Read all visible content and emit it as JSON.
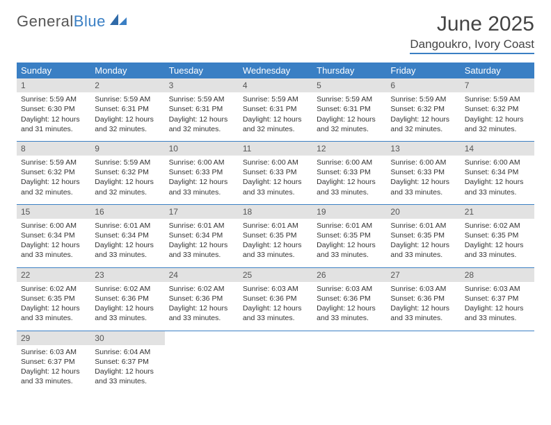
{
  "logo": {
    "text1": "General",
    "text2": "Blue"
  },
  "title": "June 2025",
  "location": "Dangoukro, Ivory Coast",
  "colors": {
    "header_bg": "#3a7fc4",
    "header_text": "#ffffff",
    "daynum_bg": "#e2e2e2",
    "rule": "#3a7fc4"
  },
  "day_names": [
    "Sunday",
    "Monday",
    "Tuesday",
    "Wednesday",
    "Thursday",
    "Friday",
    "Saturday"
  ],
  "label_sunrise": "Sunrise: ",
  "label_sunset": "Sunset: ",
  "label_daylight": "Daylight: ",
  "weeks": [
    [
      {
        "n": "1",
        "sunrise": "5:59 AM",
        "sunset": "6:30 PM",
        "daylight": "12 hours and 31 minutes."
      },
      {
        "n": "2",
        "sunrise": "5:59 AM",
        "sunset": "6:31 PM",
        "daylight": "12 hours and 32 minutes."
      },
      {
        "n": "3",
        "sunrise": "5:59 AM",
        "sunset": "6:31 PM",
        "daylight": "12 hours and 32 minutes."
      },
      {
        "n": "4",
        "sunrise": "5:59 AM",
        "sunset": "6:31 PM",
        "daylight": "12 hours and 32 minutes."
      },
      {
        "n": "5",
        "sunrise": "5:59 AM",
        "sunset": "6:31 PM",
        "daylight": "12 hours and 32 minutes."
      },
      {
        "n": "6",
        "sunrise": "5:59 AM",
        "sunset": "6:32 PM",
        "daylight": "12 hours and 32 minutes."
      },
      {
        "n": "7",
        "sunrise": "5:59 AM",
        "sunset": "6:32 PM",
        "daylight": "12 hours and 32 minutes."
      }
    ],
    [
      {
        "n": "8",
        "sunrise": "5:59 AM",
        "sunset": "6:32 PM",
        "daylight": "12 hours and 32 minutes."
      },
      {
        "n": "9",
        "sunrise": "5:59 AM",
        "sunset": "6:32 PM",
        "daylight": "12 hours and 32 minutes."
      },
      {
        "n": "10",
        "sunrise": "6:00 AM",
        "sunset": "6:33 PM",
        "daylight": "12 hours and 33 minutes."
      },
      {
        "n": "11",
        "sunrise": "6:00 AM",
        "sunset": "6:33 PM",
        "daylight": "12 hours and 33 minutes."
      },
      {
        "n": "12",
        "sunrise": "6:00 AM",
        "sunset": "6:33 PM",
        "daylight": "12 hours and 33 minutes."
      },
      {
        "n": "13",
        "sunrise": "6:00 AM",
        "sunset": "6:33 PM",
        "daylight": "12 hours and 33 minutes."
      },
      {
        "n": "14",
        "sunrise": "6:00 AM",
        "sunset": "6:34 PM",
        "daylight": "12 hours and 33 minutes."
      }
    ],
    [
      {
        "n": "15",
        "sunrise": "6:00 AM",
        "sunset": "6:34 PM",
        "daylight": "12 hours and 33 minutes."
      },
      {
        "n": "16",
        "sunrise": "6:01 AM",
        "sunset": "6:34 PM",
        "daylight": "12 hours and 33 minutes."
      },
      {
        "n": "17",
        "sunrise": "6:01 AM",
        "sunset": "6:34 PM",
        "daylight": "12 hours and 33 minutes."
      },
      {
        "n": "18",
        "sunrise": "6:01 AM",
        "sunset": "6:35 PM",
        "daylight": "12 hours and 33 minutes."
      },
      {
        "n": "19",
        "sunrise": "6:01 AM",
        "sunset": "6:35 PM",
        "daylight": "12 hours and 33 minutes."
      },
      {
        "n": "20",
        "sunrise": "6:01 AM",
        "sunset": "6:35 PM",
        "daylight": "12 hours and 33 minutes."
      },
      {
        "n": "21",
        "sunrise": "6:02 AM",
        "sunset": "6:35 PM",
        "daylight": "12 hours and 33 minutes."
      }
    ],
    [
      {
        "n": "22",
        "sunrise": "6:02 AM",
        "sunset": "6:35 PM",
        "daylight": "12 hours and 33 minutes."
      },
      {
        "n": "23",
        "sunrise": "6:02 AM",
        "sunset": "6:36 PM",
        "daylight": "12 hours and 33 minutes."
      },
      {
        "n": "24",
        "sunrise": "6:02 AM",
        "sunset": "6:36 PM",
        "daylight": "12 hours and 33 minutes."
      },
      {
        "n": "25",
        "sunrise": "6:03 AM",
        "sunset": "6:36 PM",
        "daylight": "12 hours and 33 minutes."
      },
      {
        "n": "26",
        "sunrise": "6:03 AM",
        "sunset": "6:36 PM",
        "daylight": "12 hours and 33 minutes."
      },
      {
        "n": "27",
        "sunrise": "6:03 AM",
        "sunset": "6:36 PM",
        "daylight": "12 hours and 33 minutes."
      },
      {
        "n": "28",
        "sunrise": "6:03 AM",
        "sunset": "6:37 PM",
        "daylight": "12 hours and 33 minutes."
      }
    ],
    [
      {
        "n": "29",
        "sunrise": "6:03 AM",
        "sunset": "6:37 PM",
        "daylight": "12 hours and 33 minutes."
      },
      {
        "n": "30",
        "sunrise": "6:04 AM",
        "sunset": "6:37 PM",
        "daylight": "12 hours and 33 minutes."
      },
      null,
      null,
      null,
      null,
      null
    ]
  ]
}
